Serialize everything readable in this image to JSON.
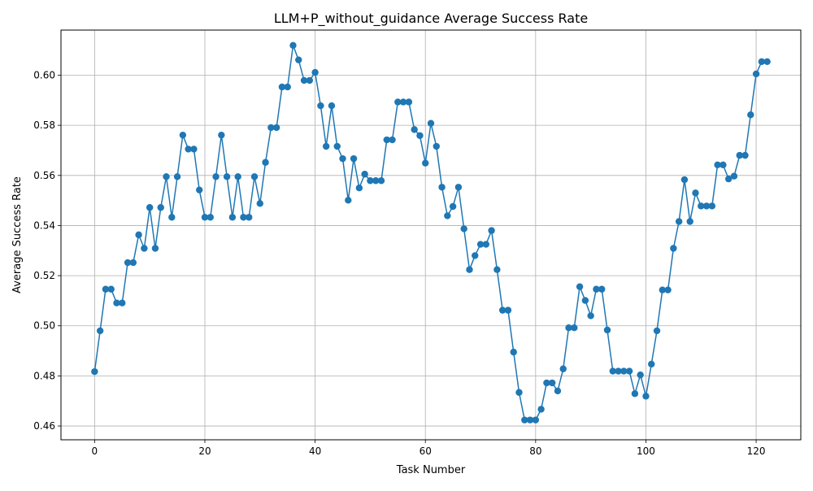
{
  "chart_data": {
    "type": "line",
    "title": "LLM+P_without_guidance Average Success Rate",
    "xlabel": "Task Number",
    "ylabel": "Average Success Rate",
    "xlim": [
      -6.1,
      128.1
    ],
    "ylim": [
      0.4545,
      0.618
    ],
    "xticks": [
      0,
      20,
      40,
      60,
      80,
      100,
      120
    ],
    "xtick_labels": [
      "0",
      "20",
      "40",
      "60",
      "80",
      "100",
      "120"
    ],
    "yticks": [
      0.46,
      0.48,
      0.5,
      0.52,
      0.54,
      0.56,
      0.58,
      0.6
    ],
    "ytick_labels": [
      "0.46",
      "0.48",
      "0.50",
      "0.52",
      "0.54",
      "0.56",
      "0.58",
      "0.60"
    ],
    "grid": true,
    "marker": "circle",
    "color": "#1f77b4",
    "x_start": 0,
    "series": [
      {
        "values": [
          0.4817,
          0.498,
          0.5146,
          0.5146,
          0.5091,
          0.5091,
          0.5252,
          0.5252,
          0.5363,
          0.5309,
          0.5472,
          0.5309,
          0.5472,
          0.5595,
          0.5433,
          0.5595,
          0.5761,
          0.5705,
          0.5705,
          0.5542,
          0.5433,
          0.5433,
          0.5595,
          0.5761,
          0.5595,
          0.5433,
          0.5595,
          0.5433,
          0.5433,
          0.5595,
          0.5488,
          0.5652,
          0.5791,
          0.5791,
          0.5953,
          0.5953,
          0.6119,
          0.6061,
          0.5979,
          0.5979,
          0.6011,
          0.5878,
          0.5716,
          0.5878,
          0.5716,
          0.5667,
          0.5501,
          0.5667,
          0.555,
          0.5605,
          0.5579,
          0.5579,
          0.5579,
          0.5742,
          0.5742,
          0.5893,
          0.5893,
          0.5893,
          0.5783,
          0.5759,
          0.5649,
          0.5808,
          0.5716,
          0.5553,
          0.5439,
          0.5476,
          0.5553,
          0.5387,
          0.5224,
          0.528,
          0.5325,
          0.5325,
          0.538,
          0.5224,
          0.5062,
          0.5062,
          0.4895,
          0.4734,
          0.4624,
          0.4624,
          0.4624,
          0.4667,
          0.4772,
          0.4772,
          0.474,
          0.4828,
          0.4992,
          0.4992,
          0.5156,
          0.5101,
          0.504,
          0.5146,
          0.5146,
          0.4983,
          0.4819,
          0.4819,
          0.4819,
          0.4819,
          0.4729,
          0.4804,
          0.4719,
          0.4847,
          0.498,
          0.5143,
          0.5143,
          0.5309,
          0.5416,
          0.5583,
          0.5416,
          0.553,
          0.5478,
          0.5478,
          0.5478,
          0.5642,
          0.5642,
          0.5586,
          0.5597,
          0.568,
          0.568,
          0.5842,
          0.6005,
          0.6054,
          0.6054
        ]
      }
    ]
  }
}
